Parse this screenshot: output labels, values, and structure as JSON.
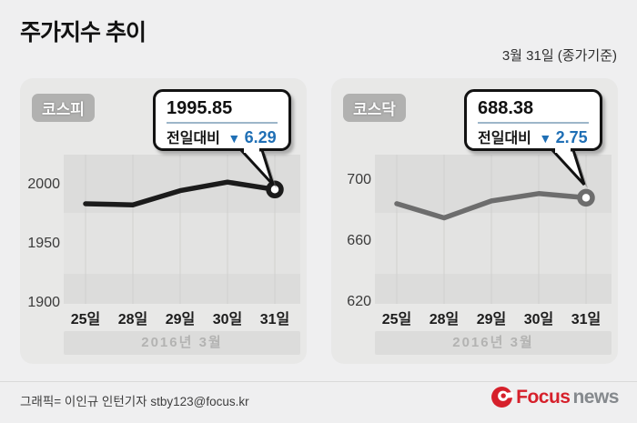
{
  "header": {
    "title": "주가지수 추이",
    "date_note": "3월 31일 (종가기준)"
  },
  "chart_data": [
    {
      "type": "line",
      "title": "코스피",
      "x": [
        "25일",
        "28일",
        "29일",
        "30일",
        "31일"
      ],
      "values": [
        1983.81,
        1982.88,
        1994.85,
        2002.14,
        1995.85
      ],
      "y_ticks": [
        2000,
        1950,
        1900
      ],
      "ylim": [
        1899,
        2025.4
      ],
      "xlabel": "2016년 3월",
      "line_color": "#1b1b1b",
      "grid": "vertical",
      "legend": "none",
      "callout": {
        "value": "1995.85",
        "label": "전일대비",
        "direction": "down",
        "delta": "6.29"
      }
    },
    {
      "type": "line",
      "title": "코스닥",
      "x": [
        "25일",
        "28일",
        "29일",
        "30일",
        "31일"
      ],
      "values": [
        684.5,
        675.2,
        686.3,
        691.13,
        688.38
      ],
      "y_ticks": [
        700,
        660,
        620
      ],
      "ylim": [
        618.8,
        716.7
      ],
      "xlabel": "2016년 3월",
      "line_color": "#6d6d6d",
      "grid": "vertical",
      "legend": "none",
      "callout": {
        "value": "688.38",
        "label": "전일대비",
        "direction": "down",
        "delta": "2.75"
      }
    }
  ],
  "colors": {
    "accent_blue": "#1f6fb5",
    "logo_red": "#d6202b",
    "logo_gray": "#85898d"
  },
  "footer": {
    "credit": "그래픽= 이인규 인턴기자 stby123@focus.kr",
    "logo_focus": "Focus",
    "logo_news": "news"
  }
}
